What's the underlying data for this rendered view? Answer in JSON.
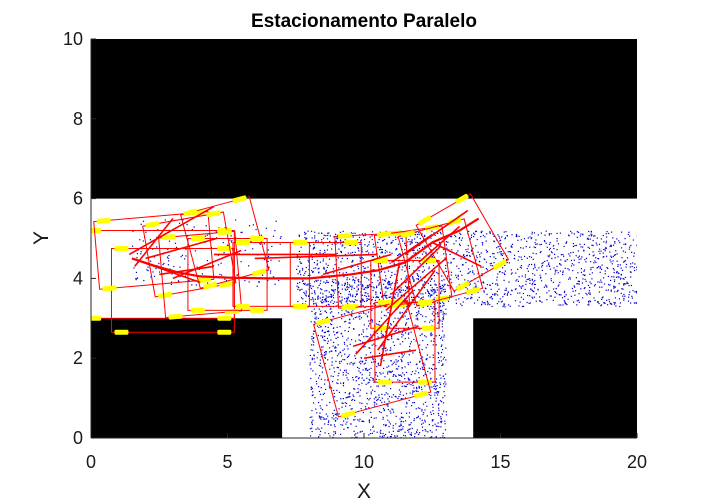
{
  "chart_data": {
    "type": "scatter",
    "title": "Estacionamento Paralelo",
    "xlabel": "X",
    "ylabel": "Y",
    "xlim": [
      0,
      20
    ],
    "ylim": [
      0,
      10
    ],
    "xticks": [
      0,
      5,
      10,
      15,
      20
    ],
    "yticks": [
      0,
      2,
      4,
      6,
      8,
      10
    ],
    "xtick_labels": [
      "0",
      "5",
      "10",
      "15",
      "20"
    ],
    "ytick_labels": [
      "0",
      "2",
      "4",
      "6",
      "8",
      "10"
    ],
    "grid": false,
    "legend": "none",
    "colors": {
      "obstacle": "#000000",
      "samples": "#0000cc",
      "tree": "#ff0000",
      "vehicle_box": "#ff0000",
      "wheels": "#ffff00"
    },
    "obstacles": [
      {
        "x0": 0,
        "y0": 6,
        "x1": 20,
        "y1": 10
      },
      {
        "x0": 0,
        "y0": 0,
        "x1": 7,
        "y1": 3
      },
      {
        "x0": 14,
        "y0": 0,
        "x1": 20,
        "y1": 3
      }
    ],
    "sample_regions": [
      {
        "x0": 8,
        "y0": 0,
        "x1": 13,
        "y1": 4,
        "count": 1500
      },
      {
        "x0": 7.5,
        "y0": 3.3,
        "x1": 20,
        "y1": 5.2,
        "count": 1700
      },
      {
        "x0": 1.5,
        "y0": 3.8,
        "x1": 7,
        "y1": 5.5,
        "count": 200
      }
    ],
    "path": [
      [
        1.5,
        4.5
      ],
      [
        2.4,
        4.3
      ],
      [
        3.2,
        4.15
      ],
      [
        4.0,
        4.05
      ],
      [
        5.0,
        4.02
      ],
      [
        6.5,
        4.0
      ],
      [
        8.0,
        4.0
      ],
      [
        9.5,
        4.1
      ],
      [
        10.5,
        4.2
      ],
      [
        11.5,
        4.4
      ],
      [
        12.5,
        4.9
      ],
      [
        13.5,
        5.2
      ],
      [
        14.2,
        5.5
      ]
    ],
    "tree_edges": [
      [
        [
          1.4,
          4.6
        ],
        [
          4.5,
          5.8
        ]
      ],
      [
        [
          1.6,
          4.3
        ],
        [
          3.0,
          5.5
        ]
      ],
      [
        [
          2.0,
          4.5
        ],
        [
          4.6,
          5.0
        ]
      ],
      [
        [
          1.5,
          4.5
        ],
        [
          4.0,
          3.9
        ]
      ],
      [
        [
          2.5,
          4.1
        ],
        [
          4.5,
          4.3
        ]
      ],
      [
        [
          3.0,
          4.0
        ],
        [
          5.5,
          4.7
        ]
      ],
      [
        [
          4.5,
          4.6
        ],
        [
          9.0,
          4.6
        ]
      ],
      [
        [
          6.0,
          4.5
        ],
        [
          10.5,
          4.6
        ]
      ],
      [
        [
          8.5,
          4.1
        ],
        [
          11.0,
          4.6
        ]
      ],
      [
        [
          11.0,
          4.4
        ],
        [
          12.5,
          5.1
        ]
      ],
      [
        [
          11.5,
          4.6
        ],
        [
          13.8,
          5.7
        ]
      ],
      [
        [
          12.5,
          4.9
        ],
        [
          14.3,
          4.3
        ]
      ],
      [
        [
          12.0,
          4.4
        ],
        [
          13.5,
          5.3
        ]
      ],
      [
        [
          10.8,
          3.2
        ],
        [
          13.0,
          4.5
        ]
      ],
      [
        [
          10.5,
          2.2
        ],
        [
          12.6,
          4.2
        ]
      ],
      [
        [
          10.0,
          2.0
        ],
        [
          11.9,
          2.2
        ]
      ],
      [
        [
          9.7,
          2.1
        ],
        [
          11.8,
          3.7
        ]
      ],
      [
        [
          10.6,
          1.8
        ],
        [
          11.3,
          4.4
        ]
      ],
      [
        [
          9.6,
          2.3
        ],
        [
          12.0,
          2.8
        ]
      ],
      [
        [
          11.0,
          3.6
        ],
        [
          12.8,
          4.8
        ]
      ]
    ],
    "vehicles": [
      {
        "cx": 2.5,
        "cy": 4.1,
        "w": 5.5,
        "h": 2.2,
        "angle": 0
      },
      {
        "cx": 3.0,
        "cy": 3.7,
        "w": 4.5,
        "h": 2.1,
        "angle": 0
      },
      {
        "cx": 2.3,
        "cy": 4.7,
        "w": 4.2,
        "h": 1.7,
        "angle": 5
      },
      {
        "cx": 3.6,
        "cy": 4.6,
        "w": 3.0,
        "h": 1.8,
        "angle": 10
      },
      {
        "cx": 4.0,
        "cy": 4.1,
        "w": 2.8,
        "h": 2.0,
        "angle": 5
      },
      {
        "cx": 4.9,
        "cy": 4.9,
        "w": 2.6,
        "h": 1.9,
        "angle": 15
      },
      {
        "cx": 5.0,
        "cy": 4.1,
        "w": 2.9,
        "h": 1.8,
        "angle": 0
      },
      {
        "cx": 6.6,
        "cy": 4.1,
        "w": 2.8,
        "h": 1.6,
        "angle": 0
      },
      {
        "cx": 8.6,
        "cy": 4.1,
        "w": 2.6,
        "h": 1.6,
        "angle": 0
      },
      {
        "cx": 10.3,
        "cy": 4.2,
        "w": 2.6,
        "h": 1.8,
        "angle": 3
      },
      {
        "cx": 11.8,
        "cy": 4.3,
        "w": 2.5,
        "h": 1.8,
        "angle": 8
      },
      {
        "cx": 12.8,
        "cy": 4.4,
        "w": 2.5,
        "h": 1.8,
        "angle": 15
      },
      {
        "cx": 13.6,
        "cy": 4.9,
        "w": 2.3,
        "h": 1.9,
        "angle": 30
      },
      {
        "cx": 11.5,
        "cy": 3.6,
        "w": 2.5,
        "h": 1.7,
        "angle": 0
      },
      {
        "cx": 11.5,
        "cy": 2.4,
        "w": 2.2,
        "h": 2.0,
        "angle": 0
      },
      {
        "cx": 10.3,
        "cy": 2.0,
        "w": 3.5,
        "h": 2.4,
        "angle": 15
      }
    ]
  }
}
